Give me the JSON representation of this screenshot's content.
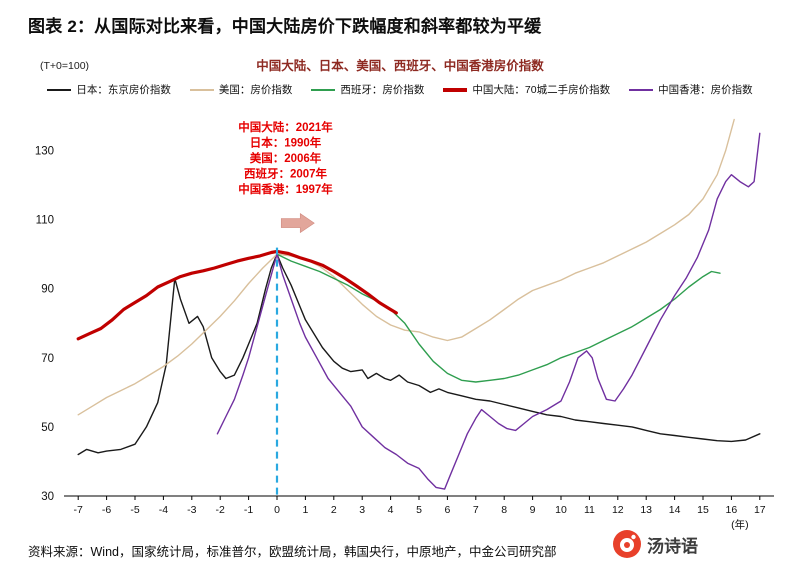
{
  "page": {
    "title": "图表 2：从国际对比来看，中国大陆房价下跌幅度和斜率都较为平缓",
    "subtitle": "中国大陆、日本、美国、西班牙、中国香港房价指数",
    "axis_note": "(T+0=100)",
    "source": "资料来源：Wind，国家统计局，标准普尔，欧盟统计局，韩国央行，中原地产，中金公司研究部",
    "watermark_name": "汤诗语"
  },
  "legend": {
    "items": [
      {
        "label": "日本：东京房价指数",
        "color": "#1a1a1a",
        "thickness": 2
      },
      {
        "label": "美国：房价指数",
        "color": "#d9c09c",
        "thickness": 2
      },
      {
        "label": "西班牙：房价指数",
        "color": "#2f9e4f",
        "thickness": 2
      },
      {
        "label": "中国大陆：70城二手房价指数",
        "color": "#c00000",
        "thickness": 4
      },
      {
        "label": "中国香港：房价指数",
        "color": "#7030a0",
        "thickness": 2
      }
    ]
  },
  "chart_data": {
    "type": "line",
    "title": "中国大陆、日本、美国、西班牙、中国香港房价指数",
    "xlabel": "(年)",
    "ylabel": "(T+0=100)",
    "xlim": [
      -7.5,
      17.5
    ],
    "ylim": [
      30,
      140
    ],
    "yticks": [
      30,
      50,
      70,
      90,
      110,
      130
    ],
    "xticks": [
      -7,
      -6,
      -5,
      -4,
      -3,
      -2,
      -1,
      0,
      1,
      2,
      3,
      4,
      5,
      6,
      7,
      8,
      9,
      10,
      11,
      12,
      13,
      14,
      15,
      16,
      17
    ],
    "grid": false,
    "peak_note_lines": [
      "中国大陆：2021年",
      "日本：1990年",
      "美国：2006年",
      "西班牙：2007年",
      "中国香港：1997年"
    ],
    "peak_note_color": "#e60000",
    "peak_note_x": 0.3,
    "peak_note_top_y": 136.8,
    "dashed_line": {
      "x": 0,
      "y_bottom": 30.4,
      "y_top": 103,
      "color": "#2aa9e0"
    },
    "arrow": {
      "x": 0.15,
      "y": 109,
      "color": "#e2a69b"
    },
    "series": [
      {
        "name": "日本：东京房价指数",
        "color": "#1a1a1a",
        "width": 1.4,
        "points": [
          [
            -7,
            42
          ],
          [
            -6.7,
            43.5
          ],
          [
            -6.3,
            42.5
          ],
          [
            -6,
            43
          ],
          [
            -5.5,
            43.5
          ],
          [
            -5,
            45
          ],
          [
            -4.6,
            50
          ],
          [
            -4.2,
            57
          ],
          [
            -3.9,
            68
          ],
          [
            -3.6,
            93
          ],
          [
            -3.4,
            87
          ],
          [
            -3.1,
            80
          ],
          [
            -2.8,
            82
          ],
          [
            -2.6,
            79
          ],
          [
            -2.3,
            70
          ],
          [
            -2,
            66
          ],
          [
            -1.8,
            64
          ],
          [
            -1.5,
            65
          ],
          [
            -1.2,
            70
          ],
          [
            -1,
            74
          ],
          [
            -0.7,
            80
          ],
          [
            -0.4,
            90
          ],
          [
            -0.2,
            96
          ],
          [
            0,
            100
          ],
          [
            0.2,
            96
          ],
          [
            0.5,
            91
          ],
          [
            0.8,
            85
          ],
          [
            1,
            81
          ],
          [
            1.3,
            77
          ],
          [
            1.6,
            73
          ],
          [
            2,
            69
          ],
          [
            2.3,
            67
          ],
          [
            2.6,
            66
          ],
          [
            3,
            66.5
          ],
          [
            3.2,
            64
          ],
          [
            3.5,
            65.5
          ],
          [
            3.8,
            64
          ],
          [
            4,
            63.5
          ],
          [
            4.3,
            65
          ],
          [
            4.6,
            63
          ],
          [
            5,
            62
          ],
          [
            5.4,
            60
          ],
          [
            5.7,
            61
          ],
          [
            6,
            60
          ],
          [
            6.5,
            59
          ],
          [
            7,
            58
          ],
          [
            7.5,
            57.5
          ],
          [
            8,
            56.5
          ],
          [
            8.5,
            55.5
          ],
          [
            9,
            54.5
          ],
          [
            9.5,
            53.5
          ],
          [
            10,
            53
          ],
          [
            10.5,
            52
          ],
          [
            11,
            51.5
          ],
          [
            11.5,
            51
          ],
          [
            12,
            50.5
          ],
          [
            12.5,
            50
          ],
          [
            13,
            49
          ],
          [
            13.5,
            48
          ],
          [
            14,
            47.5
          ],
          [
            14.5,
            47
          ],
          [
            15,
            46.5
          ],
          [
            15.5,
            46
          ],
          [
            16,
            45.8
          ],
          [
            16.5,
            46.2
          ],
          [
            17,
            48
          ]
        ]
      },
      {
        "name": "美国：房价指数",
        "color": "#d9c09c",
        "width": 1.4,
        "points": [
          [
            -7,
            53.5
          ],
          [
            -6.5,
            56
          ],
          [
            -6,
            58.5
          ],
          [
            -5.5,
            60.5
          ],
          [
            -5,
            62.5
          ],
          [
            -4.5,
            65
          ],
          [
            -4,
            67.5
          ],
          [
            -3.5,
            70.5
          ],
          [
            -3,
            74
          ],
          [
            -2.5,
            78
          ],
          [
            -2,
            82
          ],
          [
            -1.5,
            86.5
          ],
          [
            -1,
            91.5
          ],
          [
            -0.5,
            96
          ],
          [
            0,
            100
          ],
          [
            0.5,
            99.5
          ],
          [
            1,
            98.5
          ],
          [
            1.5,
            96.5
          ],
          [
            2,
            93.5
          ],
          [
            2.5,
            89.5
          ],
          [
            3,
            85.5
          ],
          [
            3.5,
            82
          ],
          [
            4,
            79.5
          ],
          [
            4.5,
            78
          ],
          [
            5,
            77.5
          ],
          [
            5.5,
            76
          ],
          [
            6,
            75
          ],
          [
            6.5,
            76
          ],
          [
            7,
            78.5
          ],
          [
            7.5,
            81
          ],
          [
            8,
            84
          ],
          [
            8.5,
            87
          ],
          [
            9,
            89.5
          ],
          [
            9.5,
            91
          ],
          [
            10,
            92.5
          ],
          [
            10.5,
            94.5
          ],
          [
            11,
            96
          ],
          [
            11.5,
            97.5
          ],
          [
            12,
            99.5
          ],
          [
            12.5,
            101.5
          ],
          [
            13,
            103.5
          ],
          [
            13.5,
            106
          ],
          [
            14,
            108.5
          ],
          [
            14.5,
            111.5
          ],
          [
            15,
            116
          ],
          [
            15.5,
            123
          ],
          [
            15.8,
            130
          ],
          [
            16.1,
            139
          ]
        ]
      },
      {
        "name": "西班牙：房价指数",
        "color": "#2f9e4f",
        "width": 1.4,
        "points": [
          [
            0,
            100
          ],
          [
            0.5,
            98
          ],
          [
            1,
            96.5
          ],
          [
            1.5,
            95
          ],
          [
            2,
            93
          ],
          [
            2.5,
            91
          ],
          [
            3,
            88.5
          ],
          [
            3.5,
            86.5
          ],
          [
            4,
            84
          ],
          [
            4.5,
            80
          ],
          [
            5,
            74
          ],
          [
            5.5,
            69
          ],
          [
            6,
            65.5
          ],
          [
            6.5,
            63.5
          ],
          [
            7,
            63
          ],
          [
            7.5,
            63.5
          ],
          [
            8,
            64
          ],
          [
            8.5,
            65
          ],
          [
            9,
            66.5
          ],
          [
            9.5,
            68
          ],
          [
            10,
            70
          ],
          [
            10.5,
            71.5
          ],
          [
            11,
            73
          ],
          [
            11.5,
            75
          ],
          [
            12,
            77
          ],
          [
            12.5,
            79
          ],
          [
            13,
            81.5
          ],
          [
            13.5,
            84
          ],
          [
            14,
            87
          ],
          [
            14.5,
            90.5
          ],
          [
            15,
            93.5
          ],
          [
            15.3,
            95
          ],
          [
            15.6,
            94.5
          ]
        ]
      },
      {
        "name": "中国大陆：70城二手房价指数",
        "color": "#c00000",
        "width": 3.2,
        "points": [
          [
            -7,
            75.5
          ],
          [
            -6.6,
            77
          ],
          [
            -6.2,
            78.5
          ],
          [
            -5.8,
            81
          ],
          [
            -5.4,
            84
          ],
          [
            -5,
            86
          ],
          [
            -4.6,
            88
          ],
          [
            -4.2,
            90.5
          ],
          [
            -3.8,
            92
          ],
          [
            -3.4,
            93.5
          ],
          [
            -3,
            94.5
          ],
          [
            -2.6,
            95.2
          ],
          [
            -2.2,
            96
          ],
          [
            -1.8,
            97
          ],
          [
            -1.4,
            98
          ],
          [
            -1,
            98.8
          ],
          [
            -0.6,
            99.5
          ],
          [
            -0.2,
            100.5
          ],
          [
            0,
            100.8
          ],
          [
            0.4,
            100.2
          ],
          [
            0.8,
            99
          ],
          [
            1.2,
            98
          ],
          [
            1.6,
            96.8
          ],
          [
            2,
            95
          ],
          [
            2.4,
            93
          ],
          [
            2.8,
            90.8
          ],
          [
            3.2,
            88.5
          ],
          [
            3.6,
            86
          ],
          [
            4,
            84
          ],
          [
            4.2,
            83
          ]
        ]
      },
      {
        "name": "中国香港：房价指数",
        "color": "#7030a0",
        "width": 1.4,
        "points": [
          [
            -2.1,
            48
          ],
          [
            -1.8,
            53
          ],
          [
            -1.5,
            58
          ],
          [
            -1.2,
            65
          ],
          [
            -1,
            70
          ],
          [
            -0.7,
            79
          ],
          [
            -0.4,
            88
          ],
          [
            -0.2,
            94
          ],
          [
            0,
            100
          ],
          [
            0.2,
            94
          ],
          [
            0.5,
            87
          ],
          [
            0.8,
            80
          ],
          [
            1,
            76
          ],
          [
            1.4,
            70
          ],
          [
            1.8,
            64
          ],
          [
            2.2,
            60
          ],
          [
            2.6,
            56
          ],
          [
            3,
            50
          ],
          [
            3.4,
            47
          ],
          [
            3.8,
            44
          ],
          [
            4.2,
            42
          ],
          [
            4.6,
            39.5
          ],
          [
            5,
            38
          ],
          [
            5.3,
            35
          ],
          [
            5.6,
            32.5
          ],
          [
            5.9,
            32
          ],
          [
            6.1,
            36
          ],
          [
            6.4,
            42
          ],
          [
            6.7,
            48
          ],
          [
            7,
            52.5
          ],
          [
            7.2,
            55
          ],
          [
            7.5,
            53
          ],
          [
            7.8,
            51
          ],
          [
            8.1,
            49.5
          ],
          [
            8.4,
            49
          ],
          [
            8.7,
            51
          ],
          [
            9,
            53
          ],
          [
            9.5,
            55
          ],
          [
            10,
            57.5
          ],
          [
            10.3,
            63
          ],
          [
            10.6,
            70
          ],
          [
            10.9,
            72
          ],
          [
            11.1,
            70
          ],
          [
            11.3,
            64
          ],
          [
            11.6,
            58
          ],
          [
            11.9,
            57.5
          ],
          [
            12.2,
            61
          ],
          [
            12.5,
            65
          ],
          [
            13,
            73
          ],
          [
            13.5,
            81
          ],
          [
            14,
            88
          ],
          [
            14.4,
            93
          ],
          [
            14.8,
            99
          ],
          [
            15.2,
            107
          ],
          [
            15.5,
            116
          ],
          [
            15.8,
            121
          ],
          [
            16,
            123
          ],
          [
            16.3,
            121
          ],
          [
            16.6,
            119.5
          ],
          [
            16.8,
            121
          ],
          [
            17,
            135
          ]
        ]
      }
    ]
  }
}
